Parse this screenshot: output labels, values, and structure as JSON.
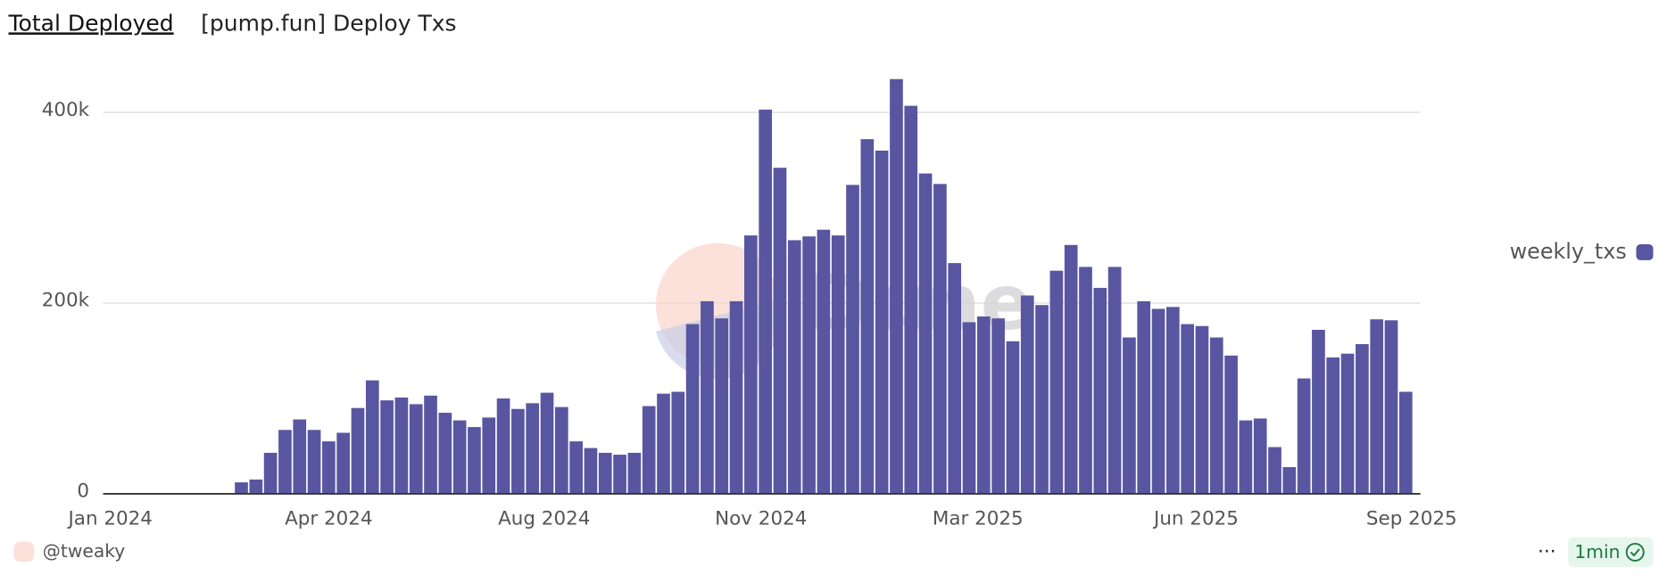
{
  "header": {
    "tab": "Total Deployed",
    "title": "[pump.fun] Deploy Txs"
  },
  "watermark": "Dune",
  "footer": {
    "author": "@tweaky",
    "refresh": "1min"
  },
  "chart_data": {
    "type": "bar",
    "categories": [
      null,
      null,
      null,
      null,
      null,
      null,
      null,
      null,
      null,
      null,
      null,
      null,
      null,
      null,
      null,
      null,
      null,
      null,
      null,
      null,
      null,
      null,
      null,
      null,
      null,
      null,
      null,
      null,
      null,
      null,
      null,
      null,
      null,
      null,
      null,
      null,
      null,
      null,
      null,
      null,
      null,
      null,
      null,
      null,
      null,
      null,
      null,
      null,
      null,
      null,
      null,
      null,
      null,
      null,
      null,
      null,
      null,
      null,
      null,
      null,
      null,
      null,
      null,
      null,
      null,
      null,
      null,
      null,
      null,
      null,
      null,
      null,
      null,
      null,
      null,
      null,
      null,
      null,
      null,
      null,
      null
    ],
    "series": [
      {
        "name": "weekly_txs",
        "color": "#5856a0",
        "values": [
          12000,
          15000,
          43000,
          67000,
          78000,
          67000,
          55000,
          64000,
          90000,
          119000,
          98000,
          101000,
          94000,
          103000,
          85000,
          77000,
          70000,
          80000,
          100000,
          89000,
          95000,
          106000,
          91000,
          55000,
          48000,
          43000,
          41000,
          43000,
          92000,
          105000,
          107000,
          178000,
          202000,
          184000,
          202000,
          271000,
          403000,
          342000,
          266000,
          270000,
          277000,
          271000,
          324000,
          372000,
          360000,
          435000,
          407000,
          336000,
          325000,
          242000,
          180000,
          186000,
          184000,
          160000,
          208000,
          198000,
          234000,
          261000,
          238000,
          216000,
          238000,
          164000,
          202000,
          194000,
          196000,
          178000,
          176000,
          164000,
          145000,
          77000,
          79000,
          49000,
          28000,
          121000,
          172000,
          143000,
          147000,
          157000,
          183000,
          182000,
          107000
        ]
      }
    ],
    "xlim": [
      -9.5,
      81
    ],
    "xticks": [
      {
        "value": -9,
        "label": "Jan 2024"
      },
      {
        "value": 6,
        "label": "Apr 2024"
      },
      {
        "value": 20.8,
        "label": "Aug 2024"
      },
      {
        "value": 35.7,
        "label": "Nov 2024"
      },
      {
        "value": 50.6,
        "label": "Mar 2025"
      },
      {
        "value": 65.6,
        "label": "Jun 2025"
      },
      {
        "value": 80.4,
        "label": "Sep 2025"
      }
    ],
    "ylim": [
      0,
      440000
    ],
    "yticks": [
      0,
      {
        "value": 200000,
        "label": "200k"
      },
      {
        "value": 400000,
        "label": "400k"
      }
    ],
    "grid": true
  }
}
